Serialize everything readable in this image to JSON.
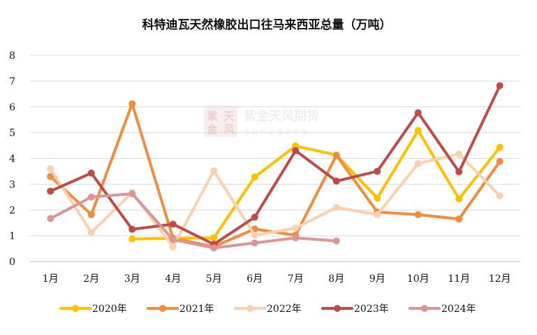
{
  "chart_data": {
    "type": "line",
    "title": "科特迪瓦天然橡胶出口往马来西亚总量（万吨）",
    "categories": [
      "1月",
      "2月",
      "3月",
      "4月",
      "5月",
      "6月",
      "7月",
      "8月",
      "9月",
      "10月",
      "11月",
      "12月"
    ],
    "yticks": [
      "0",
      "1",
      "2",
      "3",
      "4",
      "5",
      "6",
      "7",
      "8"
    ],
    "ylim": [
      0,
      8
    ],
    "grid": true,
    "legend_position": "bottom",
    "series": [
      {
        "name": "2020年",
        "color": "#FFC000",
        "values": [
          null,
          null,
          0.88,
          0.9,
          0.92,
          3.28,
          4.48,
          4.13,
          2.46,
          5.08,
          2.43,
          4.43
        ]
      },
      {
        "name": "2021年",
        "color": "#F28C3A",
        "values": [
          3.3,
          1.82,
          6.12,
          0.9,
          0.58,
          1.26,
          1.02,
          4.12,
          1.92,
          1.82,
          1.65,
          3.88
        ]
      },
      {
        "name": "2022年",
        "color": "#FAD0AE",
        "values": [
          3.6,
          1.13,
          2.68,
          0.57,
          3.52,
          1.02,
          1.3,
          2.1,
          1.82,
          3.8,
          4.17,
          2.55
        ]
      },
      {
        "name": "2023年",
        "color": "#BE4B48",
        "values": [
          2.73,
          3.43,
          1.25,
          1.45,
          0.67,
          1.72,
          4.3,
          3.12,
          3.5,
          5.77,
          3.48,
          6.82
        ]
      },
      {
        "name": "2024年",
        "color": "#D99694",
        "values": [
          1.67,
          2.5,
          2.63,
          0.85,
          0.53,
          0.72,
          0.92,
          0.8,
          null,
          null,
          null,
          null
        ]
      }
    ]
  },
  "watermark": {
    "name": "紫金天风期货",
    "slogan": "金 融 产 业 服 务 专 家",
    "logo_chars": [
      "紫",
      "天",
      "金",
      "风"
    ]
  }
}
